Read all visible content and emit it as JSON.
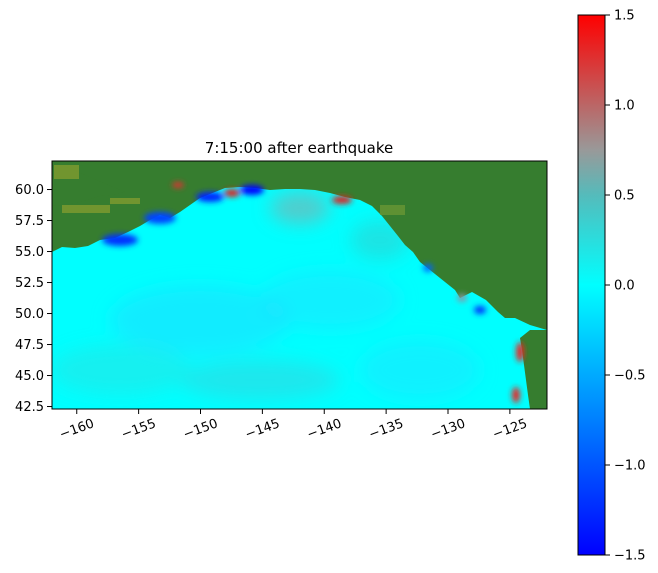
{
  "chart_data": [
    {
      "type": "heatmap",
      "title": "7:15:00 after earthquake",
      "xlabel": "",
      "ylabel": "",
      "xlim": [
        -162,
        -122
      ],
      "ylim": [
        42.3,
        62.3
      ],
      "xticks": [
        -160,
        -155,
        -150,
        -145,
        -140,
        -135,
        -130,
        -125
      ],
      "xtick_labels": [
        "−160",
        "−155",
        "−150",
        "−145",
        "−140",
        "−135",
        "−130",
        "−125"
      ],
      "yticks": [
        42.5,
        45.0,
        47.5,
        50.0,
        52.5,
        55.0,
        57.5,
        60.0
      ],
      "ytick_labels": [
        "42.5",
        "45.0",
        "47.5",
        "50.0",
        "52.5",
        "55.0",
        "57.5",
        "60.0"
      ],
      "colorbar": {
        "vmin": -1.5,
        "vmax": 1.5,
        "ticks": [
          -1.5,
          -1.0,
          -0.5,
          0.0,
          0.5,
          1.0,
          1.5
        ],
        "tick_labels": [
          "−1.5",
          "−1.0",
          "−0.5",
          "0.0",
          "0.5",
          "1.0",
          "1.5"
        ],
        "colormap": [
          {
            "value": -1.5,
            "color": "#0000ff"
          },
          {
            "value": -0.5,
            "color": "#00aaff"
          },
          {
            "value": 0.0,
            "color": "#00ffff"
          },
          {
            "value": 0.5,
            "color": "#55bbbb"
          },
          {
            "value": 0.75,
            "color": "#999999"
          },
          {
            "value": 1.5,
            "color": "#ff0000"
          }
        ]
      },
      "land_color": "#367d2f",
      "grid": false
    }
  ]
}
